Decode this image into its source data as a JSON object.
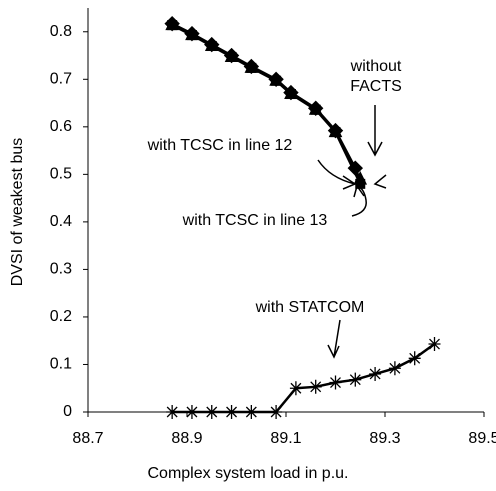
{
  "chart_data": {
    "type": "line",
    "x_label": "Complex system load in p.u.",
    "y_label": "DVSI of weakest bus",
    "xlim": [
      88.7,
      89.5
    ],
    "xticks": [
      88.7,
      88.9,
      89.1,
      89.3,
      89.5
    ],
    "ylim": [
      0,
      0.85
    ],
    "yticks": [
      0,
      0.1,
      0.2,
      0.3,
      0.4,
      0.5,
      0.6,
      0.7,
      0.8
    ],
    "series": [
      {
        "name": "without FACTS",
        "color": "#000000",
        "marker": "diamond",
        "x": [
          88.87,
          88.91,
          88.95,
          88.99,
          89.03,
          89.08,
          89.11,
          89.16,
          89.2,
          89.24
        ],
        "values": [
          0.817,
          0.796,
          0.773,
          0.75,
          0.727,
          0.7,
          0.672,
          0.639,
          0.592,
          0.513
        ]
      },
      {
        "name": "with TCSC in line 12",
        "color": "#000000",
        "marker": "triangle",
        "x": [
          88.87,
          88.91,
          88.95,
          88.99,
          89.03,
          89.08,
          89.11,
          89.16,
          89.2,
          89.25
        ],
        "values": [
          0.815,
          0.794,
          0.771,
          0.748,
          0.725,
          0.698,
          0.67,
          0.637,
          0.59,
          0.49
        ]
      },
      {
        "name": "with TCSC in line 13",
        "color": "#000000",
        "marker": "square",
        "x": [
          88.87,
          88.91,
          88.95,
          88.99,
          89.03,
          89.08,
          89.11,
          89.16,
          89.2,
          89.25
        ],
        "values": [
          0.814,
          0.793,
          0.77,
          0.747,
          0.724,
          0.697,
          0.669,
          0.636,
          0.589,
          0.48
        ]
      },
      {
        "name": "with STATCOM",
        "color": "#000000",
        "marker": "asterisk",
        "x": [
          88.87,
          88.91,
          88.95,
          88.99,
          89.03,
          89.08,
          89.12,
          89.16,
          89.2,
          89.24,
          89.28,
          89.32,
          89.36,
          89.4
        ],
        "values": [
          0,
          0,
          0,
          0,
          0,
          0,
          0.05,
          0.053,
          0.062,
          0.068,
          0.08,
          0.092,
          0.113,
          0.143
        ]
      }
    ]
  }
}
